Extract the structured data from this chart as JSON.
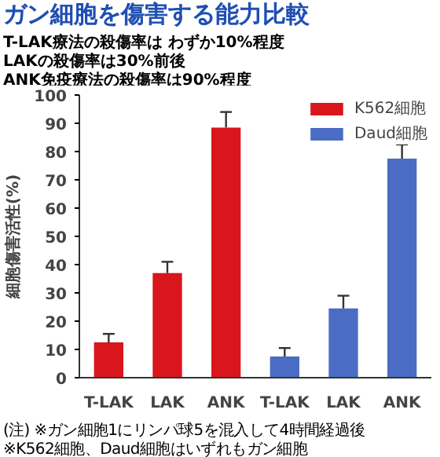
{
  "chart_data": {
    "type": "bar",
    "title": "ガン細胞を傷害する能力比較",
    "subtitle": "T-LAK療法の殺傷率は わずか10%程度\nLAKの殺傷率は30%前後\nANK免疫療法の殺傷率は90%程度",
    "ylabel": "細胞傷害活性(%)",
    "categories": [
      "T-LAK",
      "LAK",
      "ANK",
      "T-LAK",
      "LAK",
      "ANK"
    ],
    "series": [
      {
        "name": "K562細胞",
        "color": "#d9161c",
        "values": [
          12.5,
          37,
          88.5,
          null,
          null,
          null
        ],
        "errors": [
          [
            12.5,
            15.5
          ],
          [
            37,
            41
          ],
          [
            88.5,
            94
          ],
          null,
          null,
          null
        ]
      },
      {
        "name": "Daud細胞",
        "color": "#4a6cc4",
        "values": [
          null,
          null,
          null,
          7.5,
          24.5,
          77.5
        ],
        "errors": [
          null,
          null,
          null,
          [
            7.5,
            10.5
          ],
          [
            24.5,
            29
          ],
          [
            77.5,
            82.5
          ]
        ]
      }
    ],
    "ylim": [
      0,
      100
    ],
    "yticks": [
      0,
      10,
      20,
      30,
      40,
      50,
      60,
      70,
      80,
      90,
      100
    ],
    "grid": false,
    "legend": "top right",
    "annotations": [
      "(注) ※ガン細胞1にリンパ球5を混入して4時間経過後",
      "※K562細胞、Daud細胞はいずれもガン細胞"
    ]
  }
}
